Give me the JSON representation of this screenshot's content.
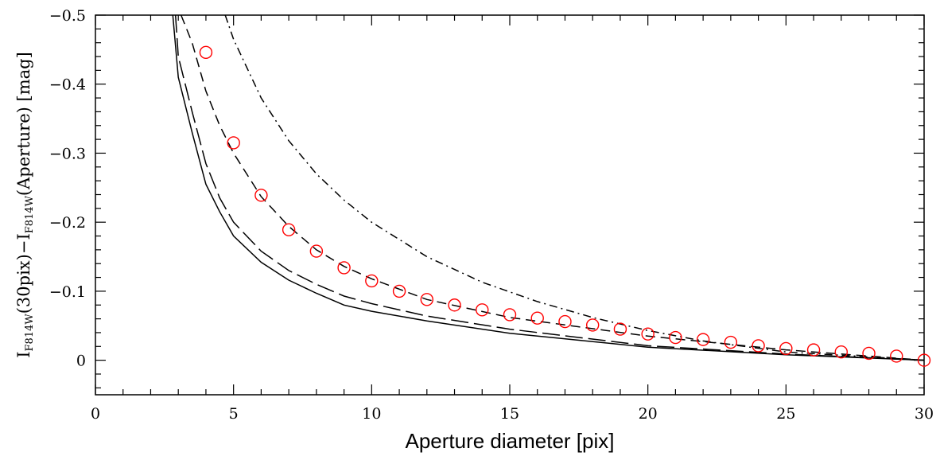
{
  "chart_data": {
    "type": "scatter",
    "title": "",
    "xlabel": "Aperture diameter [pix]",
    "ylabel": {
      "parts": [
        {
          "text": "I",
          "sub": false
        },
        {
          "text": "F814W",
          "sub": true
        },
        {
          "text": "(30pix)−I",
          "sub": false
        },
        {
          "text": "F814W",
          "sub": true
        },
        {
          "text": "(Aperture)  [mag]",
          "sub": false
        }
      ]
    },
    "xlim": [
      0,
      30
    ],
    "ylim": [
      0.05,
      -0.5
    ],
    "y_inverted": true,
    "grid": false,
    "x_ticks": [
      0,
      5,
      10,
      15,
      20,
      25,
      30
    ],
    "x_tick_labels": [
      "0",
      "5",
      "10",
      "15",
      "20",
      "25",
      "30"
    ],
    "y_ticks": [
      -0.5,
      -0.4,
      -0.3,
      -0.2,
      -0.1,
      0
    ],
    "y_tick_labels": [
      "−0.5",
      "−0.4",
      "−0.3",
      "−0.2",
      "−0.1",
      "0"
    ],
    "colors": {
      "points": "#ff0000",
      "lines": "#000000"
    },
    "series": [
      {
        "kind": "points",
        "marker": "open-circle",
        "x": [
          4,
          5,
          6,
          7,
          8,
          9,
          10,
          11,
          12,
          13,
          14,
          15,
          16,
          17,
          18,
          19,
          20,
          21,
          22,
          23,
          24,
          25,
          26,
          27,
          28,
          29,
          30
        ],
        "y": [
          -0.446,
          -0.315,
          -0.239,
          -0.189,
          -0.158,
          -0.134,
          -0.115,
          -0.1,
          -0.088,
          -0.08,
          -0.073,
          -0.066,
          -0.061,
          -0.056,
          -0.051,
          -0.045,
          -0.038,
          -0.033,
          -0.03,
          -0.026,
          -0.021,
          -0.017,
          -0.015,
          -0.012,
          -0.01,
          -0.006,
          0.0
        ]
      },
      {
        "kind": "line",
        "dash": "solid",
        "x": [
          2.8,
          3,
          3.5,
          4,
          4.5,
          5,
          6,
          7,
          8,
          9,
          10,
          12,
          15,
          20,
          25,
          30
        ],
        "y": [
          -0.5,
          -0.41,
          -0.33,
          -0.255,
          -0.215,
          -0.18,
          -0.142,
          -0.116,
          -0.097,
          -0.08,
          -0.071,
          -0.057,
          -0.039,
          -0.019,
          -0.008,
          0.0
        ]
      },
      {
        "kind": "line",
        "dash": "long-dash",
        "x": [
          2.9,
          3,
          3.5,
          4,
          4.5,
          5,
          6,
          7,
          8,
          9,
          10,
          12,
          15,
          20,
          25,
          30
        ],
        "y": [
          -0.5,
          -0.44,
          -0.36,
          -0.285,
          -0.235,
          -0.2,
          -0.158,
          -0.13,
          -0.11,
          -0.093,
          -0.082,
          -0.064,
          -0.045,
          -0.021,
          -0.009,
          0.0
        ]
      },
      {
        "kind": "line",
        "dash": "short-dash",
        "x": [
          3.1,
          3.5,
          4,
          4.5,
          5,
          6,
          7,
          8,
          9,
          10,
          12,
          15,
          20,
          25,
          30
        ],
        "y": [
          -0.5,
          -0.46,
          -0.39,
          -0.34,
          -0.3,
          -0.237,
          -0.194,
          -0.16,
          -0.136,
          -0.118,
          -0.088,
          -0.062,
          -0.035,
          -0.015,
          0.0
        ]
      },
      {
        "kind": "line",
        "dash": "dash-dot",
        "x": [
          4.7,
          5,
          6,
          7,
          8,
          9,
          10,
          12,
          14,
          16,
          18,
          20,
          22,
          25,
          30
        ],
        "y": [
          -0.5,
          -0.465,
          -0.38,
          -0.318,
          -0.27,
          -0.232,
          -0.2,
          -0.15,
          -0.113,
          -0.085,
          -0.062,
          -0.043,
          -0.028,
          -0.012,
          0.0
        ]
      }
    ]
  }
}
